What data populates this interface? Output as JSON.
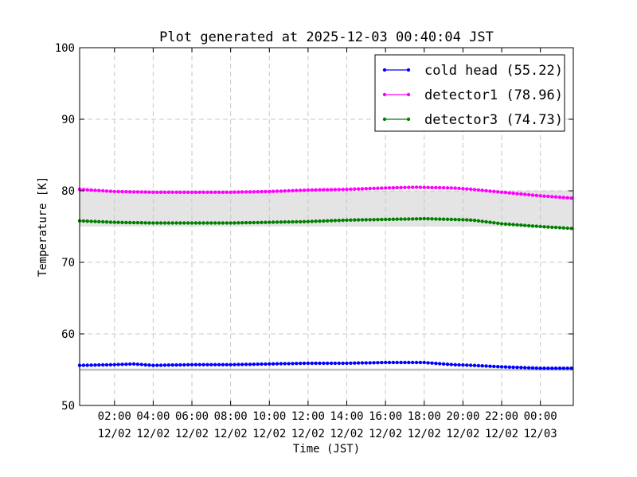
{
  "chart_data": {
    "type": "line",
    "title": "Plot generated at 2025-12-03 00:40:04 JST",
    "xlabel": "Time (JST)",
    "ylabel": "Temperature [K]",
    "ylim": [
      50,
      100
    ],
    "yticks": [
      "50",
      "60",
      "70",
      "80",
      "90",
      "100"
    ],
    "x_range_hours": [
      0.2,
      25.7
    ],
    "xticks": [
      {
        "hour": 2,
        "time": "02:00",
        "date": "12/02"
      },
      {
        "hour": 4,
        "time": "04:00",
        "date": "12/02"
      },
      {
        "hour": 6,
        "time": "06:00",
        "date": "12/02"
      },
      {
        "hour": 8,
        "time": "08:00",
        "date": "12/02"
      },
      {
        "hour": 10,
        "time": "10:00",
        "date": "12/02"
      },
      {
        "hour": 12,
        "time": "12:00",
        "date": "12/02"
      },
      {
        "hour": 14,
        "time": "14:00",
        "date": "12/02"
      },
      {
        "hour": 16,
        "time": "16:00",
        "date": "12/02"
      },
      {
        "hour": 18,
        "time": "18:00",
        "date": "12/02"
      },
      {
        "hour": 20,
        "time": "20:00",
        "date": "12/02"
      },
      {
        "hour": 22,
        "time": "22:00",
        "date": "12/02"
      },
      {
        "hour": 24,
        "time": "00:00",
        "date": "12/03"
      }
    ],
    "grid": true,
    "legend_position": "top-right",
    "bands": [
      {
        "ymin": 75,
        "ymax": 80,
        "color": "#e4e4e4"
      }
    ],
    "reference_lines": [
      {
        "y": 55,
        "color": "#bdbdbd"
      }
    ],
    "series": [
      {
        "name": "cold head (55.22)",
        "color": "#0000ff",
        "points": [
          [
            0.2,
            55.6
          ],
          [
            2,
            55.7
          ],
          [
            3,
            55.8
          ],
          [
            4,
            55.6
          ],
          [
            6,
            55.7
          ],
          [
            8,
            55.7
          ],
          [
            10,
            55.8
          ],
          [
            12,
            55.9
          ],
          [
            14,
            55.9
          ],
          [
            16,
            56.0
          ],
          [
            18,
            56.0
          ],
          [
            19.5,
            55.7
          ],
          [
            20.5,
            55.6
          ],
          [
            22,
            55.4
          ],
          [
            24,
            55.2
          ],
          [
            25.7,
            55.2
          ]
        ]
      },
      {
        "name": "detector1 (78.96)",
        "color": "#ff00ff",
        "points": [
          [
            0.2,
            80.2
          ],
          [
            2,
            79.9
          ],
          [
            4,
            79.8
          ],
          [
            6,
            79.8
          ],
          [
            8,
            79.8
          ],
          [
            10,
            79.9
          ],
          [
            12,
            80.1
          ],
          [
            14,
            80.2
          ],
          [
            16,
            80.4
          ],
          [
            17.5,
            80.5
          ],
          [
            19.5,
            80.4
          ],
          [
            20.5,
            80.2
          ],
          [
            22,
            79.8
          ],
          [
            24,
            79.3
          ],
          [
            25.7,
            78.96
          ]
        ]
      },
      {
        "name": "detector3 (74.73)",
        "color": "#008000",
        "points": [
          [
            0.2,
            75.8
          ],
          [
            2,
            75.6
          ],
          [
            4,
            75.5
          ],
          [
            6,
            75.5
          ],
          [
            8,
            75.5
          ],
          [
            10,
            75.6
          ],
          [
            12,
            75.7
          ],
          [
            14,
            75.9
          ],
          [
            16,
            76.0
          ],
          [
            18,
            76.1
          ],
          [
            19.5,
            76.0
          ],
          [
            20.5,
            75.9
          ],
          [
            22,
            75.4
          ],
          [
            24,
            75.0
          ],
          [
            25.7,
            74.73
          ]
        ]
      }
    ]
  }
}
